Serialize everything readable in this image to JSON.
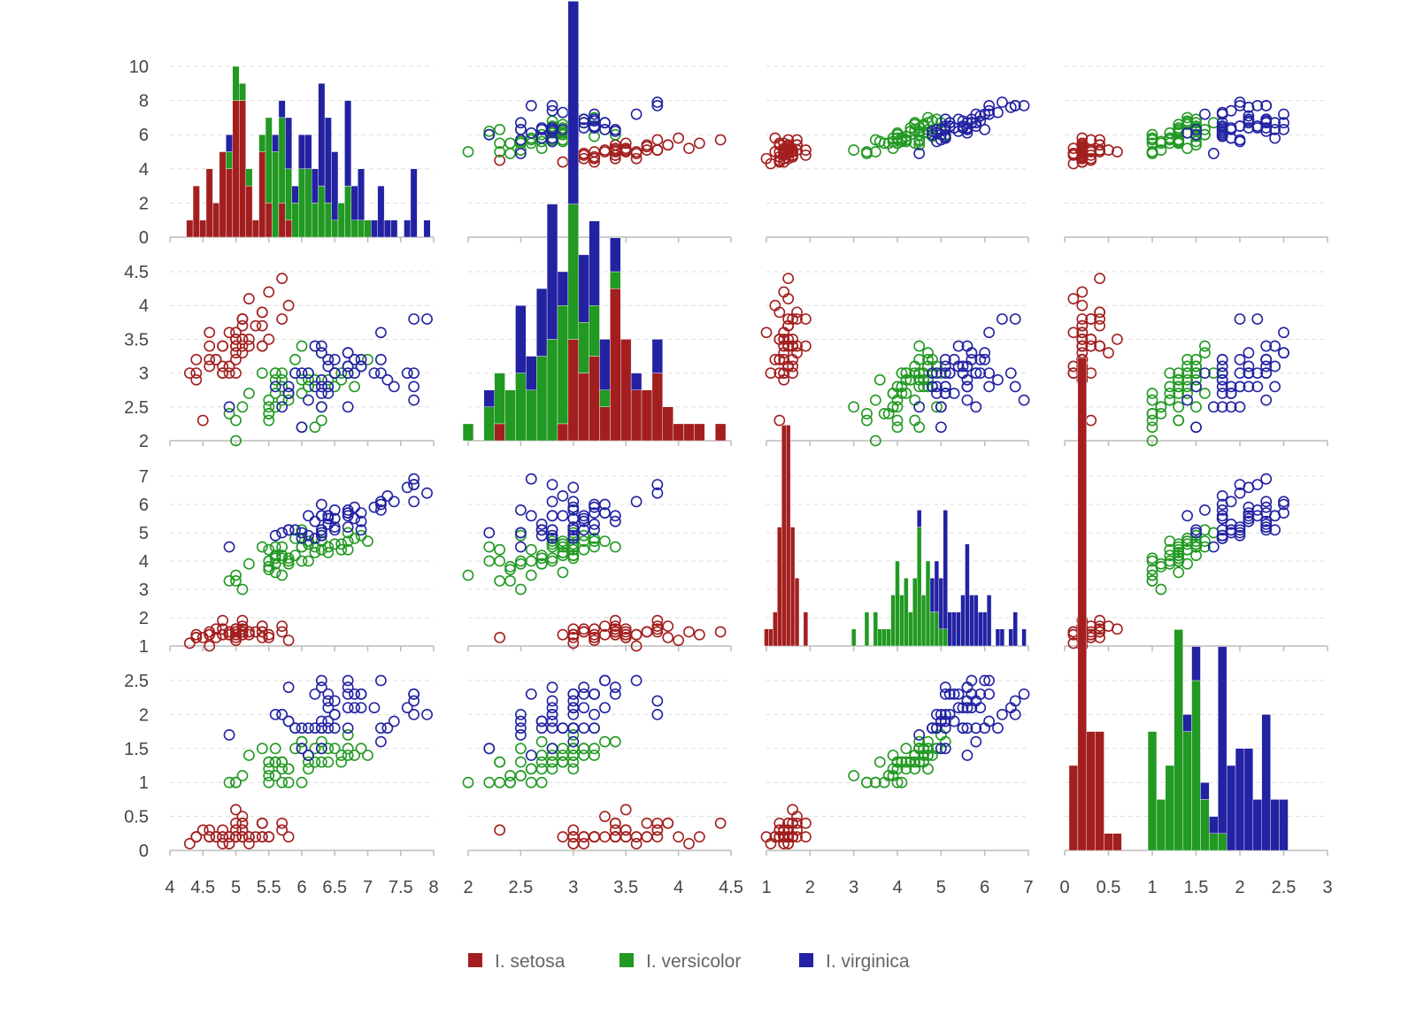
{
  "chart_data": {
    "type": "scatter-matrix",
    "legend_placement": "bottom-center",
    "grid": true,
    "colors": {
      "I. setosa": "#a31f1f",
      "I. versicolor": "#229922",
      "I. virginica": "#2222a3"
    },
    "axes": [
      {
        "range": [
          4,
          8
        ],
        "ticks": [
          "4",
          "4.5",
          "5",
          "5.5",
          "6",
          "6.5",
          "7",
          "7.5",
          "8"
        ],
        "tick_values": [
          4,
          4.5,
          5,
          5.5,
          6,
          6.5,
          7,
          7.5,
          8
        ]
      },
      {
        "range": [
          2,
          4.5
        ],
        "ticks": [
          "2",
          "2.5",
          "3",
          "3.5",
          "4",
          "4.5"
        ],
        "tick_values": [
          2,
          2.5,
          3,
          3.5,
          4,
          4.5
        ]
      },
      {
        "range": [
          1,
          7
        ],
        "ticks": [
          "1",
          "2",
          "3",
          "4",
          "5",
          "6",
          "7"
        ],
        "tick_values": [
          1,
          2,
          3,
          4,
          5,
          6,
          7
        ]
      },
      {
        "range": [
          0,
          3
        ],
        "ticks": [
          "0",
          "0.5",
          "1",
          "1.5",
          "2",
          "2.5",
          "3"
        ],
        "tick_values": [
          0,
          0.5,
          1,
          1.5,
          2,
          2.5,
          3
        ]
      }
    ],
    "row_axes": [
      {
        "range": [
          0,
          10
        ],
        "ticks": [
          "0",
          "2",
          "4",
          "6",
          "8",
          "10"
        ],
        "tick_values": [
          0,
          2,
          4,
          6,
          8,
          10
        ]
      },
      {
        "range": [
          2,
          4.5
        ],
        "ticks": [
          "2",
          "2.5",
          "3",
          "3.5",
          "4",
          "4.5"
        ],
        "tick_values": [
          2,
          2.5,
          3,
          3.5,
          4,
          4.5
        ]
      },
      {
        "range": [
          1,
          7
        ],
        "ticks": [
          "1",
          "2",
          "3",
          "4",
          "5",
          "6",
          "7"
        ],
        "tick_values": [
          1,
          2,
          3,
          4,
          5,
          6,
          7
        ]
      },
      {
        "range": [
          0,
          2.5
        ],
        "ticks": [
          "0",
          "0.5",
          "1",
          "1.5",
          "2",
          "2.5"
        ],
        "tick_values": [
          0,
          0.5,
          1,
          1.5,
          2,
          2.5
        ]
      }
    ],
    "histogram_bin_widths": [
      0.1,
      0.1,
      0.1,
      0.1
    ],
    "series": [
      {
        "name": "I. setosa",
        "points": [
          [
            5.1,
            3.5,
            1.4,
            0.2
          ],
          [
            4.9,
            3.0,
            1.4,
            0.2
          ],
          [
            4.7,
            3.2,
            1.3,
            0.2
          ],
          [
            4.6,
            3.1,
            1.5,
            0.2
          ],
          [
            5.0,
            3.6,
            1.4,
            0.2
          ],
          [
            5.4,
            3.9,
            1.7,
            0.4
          ],
          [
            4.6,
            3.4,
            1.4,
            0.3
          ],
          [
            5.0,
            3.4,
            1.5,
            0.2
          ],
          [
            4.4,
            2.9,
            1.4,
            0.2
          ],
          [
            4.9,
            3.1,
            1.5,
            0.1
          ],
          [
            5.4,
            3.7,
            1.5,
            0.2
          ],
          [
            4.8,
            3.4,
            1.6,
            0.2
          ],
          [
            4.8,
            3.0,
            1.4,
            0.1
          ],
          [
            4.3,
            3.0,
            1.1,
            0.1
          ],
          [
            5.8,
            4.0,
            1.2,
            0.2
          ],
          [
            5.7,
            4.4,
            1.5,
            0.4
          ],
          [
            5.4,
            3.9,
            1.3,
            0.4
          ],
          [
            5.1,
            3.5,
            1.4,
            0.3
          ],
          [
            5.7,
            3.8,
            1.7,
            0.3
          ],
          [
            5.1,
            3.8,
            1.5,
            0.3
          ],
          [
            5.4,
            3.4,
            1.7,
            0.2
          ],
          [
            5.1,
            3.7,
            1.5,
            0.4
          ],
          [
            4.6,
            3.6,
            1.0,
            0.2
          ],
          [
            5.1,
            3.3,
            1.7,
            0.5
          ],
          [
            4.8,
            3.4,
            1.9,
            0.2
          ],
          [
            5.0,
            3.0,
            1.6,
            0.2
          ],
          [
            5.0,
            3.4,
            1.6,
            0.4
          ],
          [
            5.2,
            3.5,
            1.5,
            0.2
          ],
          [
            5.2,
            3.4,
            1.4,
            0.2
          ],
          [
            4.7,
            3.2,
            1.6,
            0.2
          ],
          [
            4.8,
            3.1,
            1.6,
            0.2
          ],
          [
            5.4,
            3.4,
            1.5,
            0.4
          ],
          [
            5.2,
            4.1,
            1.5,
            0.1
          ],
          [
            5.5,
            4.2,
            1.4,
            0.2
          ],
          [
            4.9,
            3.1,
            1.5,
            0.2
          ],
          [
            5.0,
            3.2,
            1.2,
            0.2
          ],
          [
            5.5,
            3.5,
            1.3,
            0.2
          ],
          [
            4.9,
            3.6,
            1.4,
            0.1
          ],
          [
            4.4,
            3.0,
            1.3,
            0.2
          ],
          [
            5.1,
            3.4,
            1.5,
            0.2
          ],
          [
            5.0,
            3.5,
            1.3,
            0.3
          ],
          [
            4.5,
            2.3,
            1.3,
            0.3
          ],
          [
            4.4,
            3.2,
            1.3,
            0.2
          ],
          [
            5.0,
            3.5,
            1.6,
            0.6
          ],
          [
            5.1,
            3.8,
            1.9,
            0.4
          ],
          [
            4.8,
            3.0,
            1.4,
            0.3
          ],
          [
            5.1,
            3.8,
            1.6,
            0.2
          ],
          [
            4.6,
            3.2,
            1.4,
            0.2
          ],
          [
            5.3,
            3.7,
            1.5,
            0.2
          ],
          [
            5.0,
            3.3,
            1.4,
            0.2
          ]
        ]
      },
      {
        "name": "I. versicolor",
        "points": [
          [
            7.0,
            3.2,
            4.7,
            1.4
          ],
          [
            6.4,
            3.2,
            4.5,
            1.5
          ],
          [
            6.9,
            3.1,
            4.9,
            1.5
          ],
          [
            5.5,
            2.3,
            4.0,
            1.3
          ],
          [
            6.5,
            2.8,
            4.6,
            1.5
          ],
          [
            5.7,
            2.8,
            4.5,
            1.3
          ],
          [
            6.3,
            3.3,
            4.7,
            1.6
          ],
          [
            4.9,
            2.4,
            3.3,
            1.0
          ],
          [
            6.6,
            2.9,
            4.6,
            1.3
          ],
          [
            5.2,
            2.7,
            3.9,
            1.4
          ],
          [
            5.0,
            2.0,
            3.5,
            1.0
          ],
          [
            5.9,
            3.0,
            4.2,
            1.5
          ],
          [
            6.0,
            2.2,
            4.0,
            1.0
          ],
          [
            6.1,
            2.9,
            4.7,
            1.4
          ],
          [
            5.6,
            2.9,
            3.6,
            1.3
          ],
          [
            6.7,
            3.1,
            4.4,
            1.4
          ],
          [
            5.6,
            3.0,
            4.5,
            1.5
          ],
          [
            5.8,
            2.7,
            4.1,
            1.0
          ],
          [
            6.2,
            2.2,
            4.5,
            1.5
          ],
          [
            5.6,
            2.5,
            3.9,
            1.1
          ],
          [
            5.9,
            3.2,
            4.8,
            1.8
          ],
          [
            6.1,
            2.8,
            4.0,
            1.3
          ],
          [
            6.3,
            2.5,
            4.9,
            1.5
          ],
          [
            6.1,
            2.8,
            4.7,
            1.2
          ],
          [
            6.4,
            2.9,
            4.3,
            1.3
          ],
          [
            6.6,
            3.0,
            4.4,
            1.4
          ],
          [
            6.8,
            2.8,
            4.8,
            1.4
          ],
          [
            6.7,
            3.0,
            5.0,
            1.7
          ],
          [
            6.0,
            2.9,
            4.5,
            1.5
          ],
          [
            5.7,
            2.6,
            3.5,
            1.0
          ],
          [
            5.5,
            2.4,
            3.8,
            1.1
          ],
          [
            5.5,
            2.4,
            3.7,
            1.0
          ],
          [
            5.8,
            2.7,
            3.9,
            1.2
          ],
          [
            6.0,
            2.7,
            5.1,
            1.6
          ],
          [
            5.4,
            3.0,
            4.5,
            1.5
          ],
          [
            6.0,
            3.4,
            4.5,
            1.6
          ],
          [
            6.7,
            3.1,
            4.7,
            1.5
          ],
          [
            6.3,
            2.3,
            4.4,
            1.3
          ],
          [
            5.6,
            3.0,
            4.1,
            1.3
          ],
          [
            5.5,
            2.5,
            4.0,
            1.3
          ],
          [
            5.5,
            2.6,
            4.4,
            1.2
          ],
          [
            6.1,
            3.0,
            4.6,
            1.4
          ],
          [
            5.8,
            2.6,
            4.0,
            1.2
          ],
          [
            5.0,
            2.3,
            3.3,
            1.0
          ],
          [
            5.6,
            2.7,
            4.2,
            1.3
          ],
          [
            5.7,
            3.0,
            4.2,
            1.2
          ],
          [
            5.7,
            2.9,
            4.2,
            1.3
          ],
          [
            6.2,
            2.9,
            4.3,
            1.3
          ],
          [
            5.1,
            2.5,
            3.0,
            1.1
          ],
          [
            5.7,
            2.8,
            4.1,
            1.3
          ]
        ]
      },
      {
        "name": "I. virginica",
        "points": [
          [
            6.3,
            3.3,
            6.0,
            2.5
          ],
          [
            5.8,
            2.7,
            5.1,
            1.9
          ],
          [
            7.1,
            3.0,
            5.9,
            2.1
          ],
          [
            6.3,
            2.9,
            5.6,
            1.8
          ],
          [
            6.5,
            3.0,
            5.8,
            2.2
          ],
          [
            7.6,
            3.0,
            6.6,
            2.1
          ],
          [
            4.9,
            2.5,
            4.5,
            1.7
          ],
          [
            7.3,
            2.9,
            6.3,
            1.8
          ],
          [
            6.7,
            2.5,
            5.8,
            1.8
          ],
          [
            7.2,
            3.6,
            6.1,
            2.5
          ],
          [
            6.5,
            3.2,
            5.1,
            2.0
          ],
          [
            6.4,
            2.7,
            5.3,
            1.9
          ],
          [
            6.8,
            3.0,
            5.5,
            2.1
          ],
          [
            5.7,
            2.5,
            5.0,
            2.0
          ],
          [
            5.8,
            2.8,
            5.1,
            2.4
          ],
          [
            6.4,
            3.2,
            5.3,
            2.3
          ],
          [
            6.5,
            3.0,
            5.5,
            1.8
          ],
          [
            7.7,
            3.8,
            6.7,
            2.2
          ],
          [
            7.7,
            2.6,
            6.9,
            2.3
          ],
          [
            6.0,
            2.2,
            5.0,
            1.5
          ],
          [
            6.9,
            3.2,
            5.7,
            2.3
          ],
          [
            5.6,
            2.8,
            4.9,
            2.0
          ],
          [
            7.7,
            2.8,
            6.7,
            2.0
          ],
          [
            6.3,
            2.7,
            4.9,
            1.8
          ],
          [
            6.7,
            3.3,
            5.7,
            2.1
          ],
          [
            7.2,
            3.2,
            6.0,
            1.8
          ],
          [
            6.2,
            2.8,
            4.8,
            1.8
          ],
          [
            6.1,
            3.0,
            4.9,
            1.8
          ],
          [
            6.4,
            2.8,
            5.6,
            2.1
          ],
          [
            7.2,
            3.0,
            5.8,
            1.6
          ],
          [
            7.4,
            2.8,
            6.1,
            1.9
          ],
          [
            7.9,
            3.8,
            6.4,
            2.0
          ],
          [
            6.4,
            2.8,
            5.6,
            2.2
          ],
          [
            6.3,
            2.8,
            5.1,
            1.5
          ],
          [
            6.1,
            2.6,
            5.6,
            1.4
          ],
          [
            7.7,
            3.0,
            6.1,
            2.3
          ],
          [
            6.3,
            3.4,
            5.6,
            2.4
          ],
          [
            6.4,
            3.1,
            5.5,
            1.8
          ],
          [
            6.0,
            3.0,
            4.8,
            1.8
          ],
          [
            6.9,
            3.1,
            5.4,
            2.1
          ],
          [
            6.7,
            3.1,
            5.6,
            2.4
          ],
          [
            6.9,
            3.1,
            5.1,
            2.3
          ],
          [
            5.8,
            2.7,
            5.1,
            1.9
          ],
          [
            6.8,
            3.2,
            5.9,
            2.3
          ],
          [
            6.7,
            3.3,
            5.7,
            2.5
          ],
          [
            6.7,
            3.0,
            5.2,
            2.3
          ],
          [
            6.3,
            2.5,
            5.0,
            1.9
          ],
          [
            6.5,
            3.0,
            5.2,
            2.0
          ],
          [
            6.2,
            3.4,
            5.4,
            2.3
          ],
          [
            5.9,
            3.0,
            5.1,
            1.8
          ]
        ]
      }
    ]
  }
}
